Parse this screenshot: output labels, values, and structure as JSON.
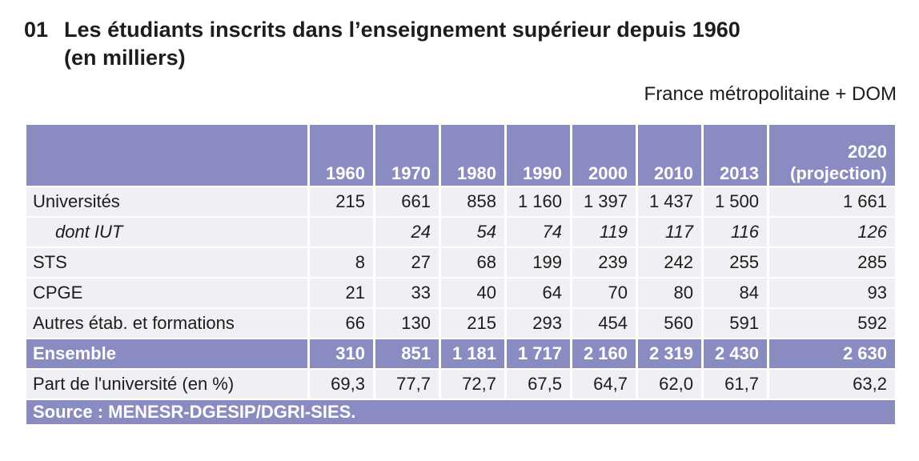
{
  "page": {
    "number": "01",
    "title_line1": "Les étudiants inscrits dans l’enseignement supérieur depuis 1960",
    "title_line2": "(en milliers)",
    "region_note": "France métropolitaine + DOM"
  },
  "colors": {
    "accent": "#8a8bc0",
    "row_bg": "#f0eff3",
    "text": "#1d1d1b",
    "header_text": "#ffffff"
  },
  "table": {
    "columns": [
      "1960",
      "1970",
      "1980",
      "1990",
      "2000",
      "2010",
      "2013",
      "2020\n(projection)"
    ],
    "rows": [
      {
        "label": "Universités",
        "style": "normal",
        "values": [
          "215",
          "661",
          "858",
          "1 160",
          "1 397",
          "1 437",
          "1 500",
          "1 661"
        ]
      },
      {
        "label": "dont IUT",
        "style": "sub-italic",
        "values": [
          "",
          "24",
          "54",
          "74",
          "119",
          "117",
          "116",
          "126"
        ]
      },
      {
        "label": "STS",
        "style": "normal",
        "values": [
          "8",
          "27",
          "68",
          "199",
          "239",
          "242",
          "255",
          "285"
        ]
      },
      {
        "label": "CPGE",
        "style": "normal",
        "values": [
          "21",
          "33",
          "40",
          "64",
          "70",
          "80",
          "84",
          "93"
        ]
      },
      {
        "label": "Autres étab. et formations",
        "style": "normal",
        "values": [
          "66",
          "130",
          "215",
          "293",
          "454",
          "560",
          "591",
          "592"
        ]
      },
      {
        "label": "Ensemble",
        "style": "total",
        "values": [
          "310",
          "851",
          "1 181",
          "1 717",
          "2 160",
          "2 319",
          "2 430",
          "2 630"
        ]
      },
      {
        "label": "Part de l'université (en %)",
        "style": "normal",
        "values": [
          "69,3",
          "77,7",
          "72,7",
          "67,5",
          "64,7",
          "62,0",
          "61,7",
          "63,2"
        ]
      }
    ],
    "source": "Source : MENESR-DGESIP/DGRI-SIES."
  }
}
